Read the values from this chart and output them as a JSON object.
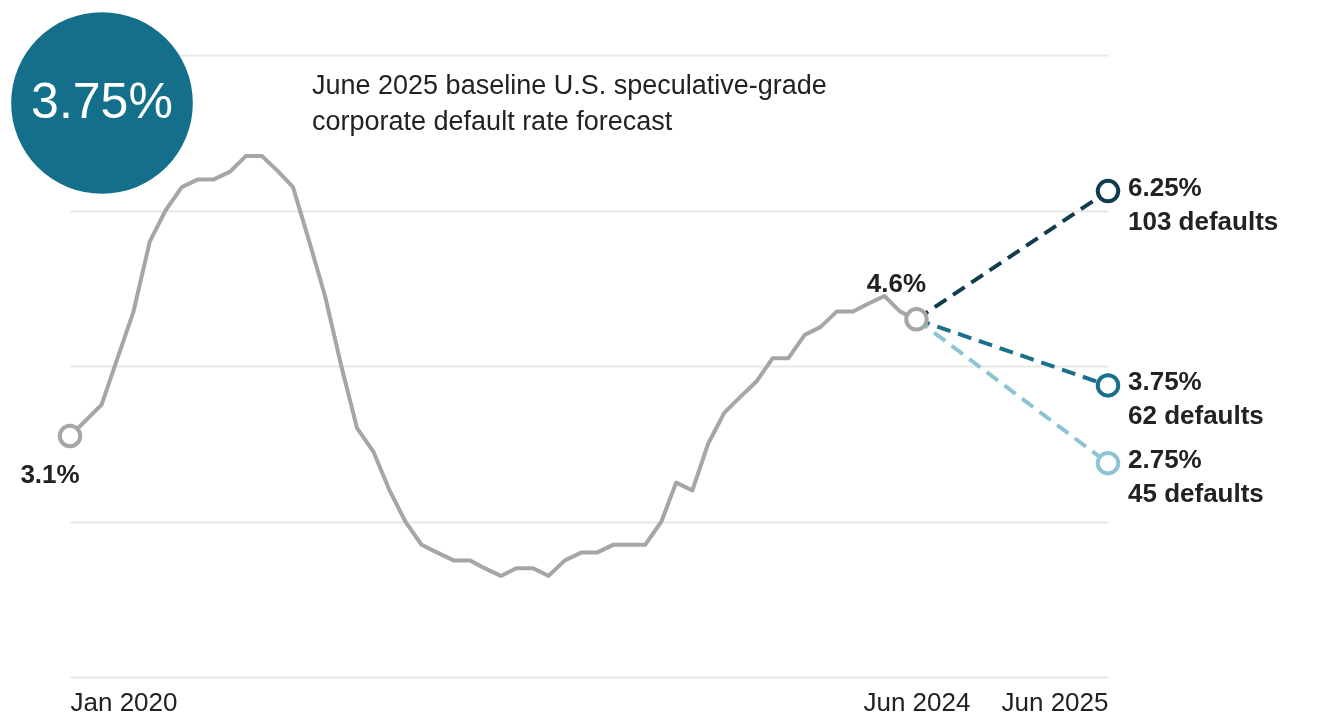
{
  "chart_data": {
    "type": "line",
    "title": "June 2025 baseline U.S. speculative-grade corporate default rate forecast",
    "annotations": [
      "3.75%"
    ],
    "grid": "y",
    "xlim": [
      "2020-01",
      "2025-06"
    ],
    "xticks": [
      {
        "value": "2020-01",
        "label": "Jan 2020"
      },
      {
        "value": "2024-06",
        "label": "Jun 2024"
      },
      {
        "value": "2025-06",
        "label": "Jun 2025"
      }
    ],
    "ylim": [
      0,
      8
    ],
    "yticks": [
      {
        "value": 0,
        "label": null
      },
      {
        "value": 2,
        "label": null
      },
      {
        "value": 4,
        "label": null
      },
      {
        "value": 6,
        "label": null
      },
      {
        "value": 8,
        "label": null
      }
    ],
    "tick_labels": "x",
    "series": [
      {
        "color": "#a6a6a6",
        "line_style": "solid",
        "x": [
          "2020-01",
          "2020-03",
          "2020-05",
          "2020-06",
          "2020-07",
          "2020-08",
          "2020-09",
          "2020-10",
          "2020-11",
          "2020-12",
          "2021-01",
          "2021-02",
          "2021-03",
          "2021-04",
          "2021-05",
          "2021-06",
          "2021-07",
          "2021-08",
          "2021-09",
          "2021-10",
          "2021-11",
          "2021-12",
          "2022-01",
          "2022-02",
          "2022-03",
          "2022-04",
          "2022-05",
          "2022-06",
          "2022-07",
          "2022-08",
          "2022-09",
          "2022-10",
          "2022-11",
          "2022-12",
          "2023-01",
          "2023-02",
          "2023-03",
          "2023-04",
          "2023-05",
          "2023-06",
          "2023-07",
          "2023-08",
          "2023-09",
          "2023-10",
          "2023-11",
          "2023-12",
          "2024-01",
          "2024-02",
          "2024-03",
          "2024-04",
          "2024-05",
          "2024-06"
        ],
        "values": [
          3.1,
          3.5,
          4.7,
          5.6,
          6.0,
          6.3,
          6.4,
          6.4,
          6.5,
          6.7,
          6.7,
          6.5,
          6.3,
          5.6,
          4.9,
          4.0,
          3.2,
          2.9,
          2.4,
          2.0,
          1.7,
          1.6,
          1.5,
          1.5,
          1.4,
          1.3,
          1.4,
          1.4,
          1.3,
          1.5,
          1.6,
          1.6,
          1.7,
          1.7,
          1.7,
          2.0,
          2.5,
          2.4,
          3.0,
          3.4,
          3.6,
          3.8,
          4.1,
          4.1,
          4.4,
          4.5,
          4.7,
          4.7,
          4.8,
          4.9,
          4.7,
          4.6
        ],
        "value_labels": [
          "3.1%",
          null,
          null,
          null,
          null,
          null,
          null,
          null,
          null,
          null,
          null,
          null,
          null,
          null,
          null,
          null,
          null,
          null,
          null,
          null,
          null,
          null,
          null,
          null,
          null,
          null,
          null,
          null,
          null,
          null,
          null,
          null,
          null,
          null,
          null,
          null,
          null,
          null,
          null,
          null,
          null,
          null,
          null,
          null,
          null,
          null,
          null,
          null,
          null,
          null,
          null,
          "4.6%"
        ]
      },
      {
        "color": "#0f3d4e",
        "line_style": "dashed",
        "x": [
          "2024-06",
          "2025-06"
        ],
        "values": [
          4.6,
          6.25
        ],
        "value_labels": [
          null,
          "6.25%\n103 defaults"
        ]
      },
      {
        "color": "#1a6f8a",
        "line_style": "dashed",
        "x": [
          "2024-06",
          "2025-06"
        ],
        "values": [
          4.6,
          3.75
        ],
        "value_labels": [
          null,
          "3.75%\n62 defaults"
        ]
      },
      {
        "color": "#8cc4d4",
        "line_style": "dashed",
        "x": [
          "2024-06",
          "2025-06"
        ],
        "values": [
          4.6,
          2.75
        ],
        "value_labels": [
          null,
          "2.75%\n45 defaults"
        ]
      }
    ]
  }
}
